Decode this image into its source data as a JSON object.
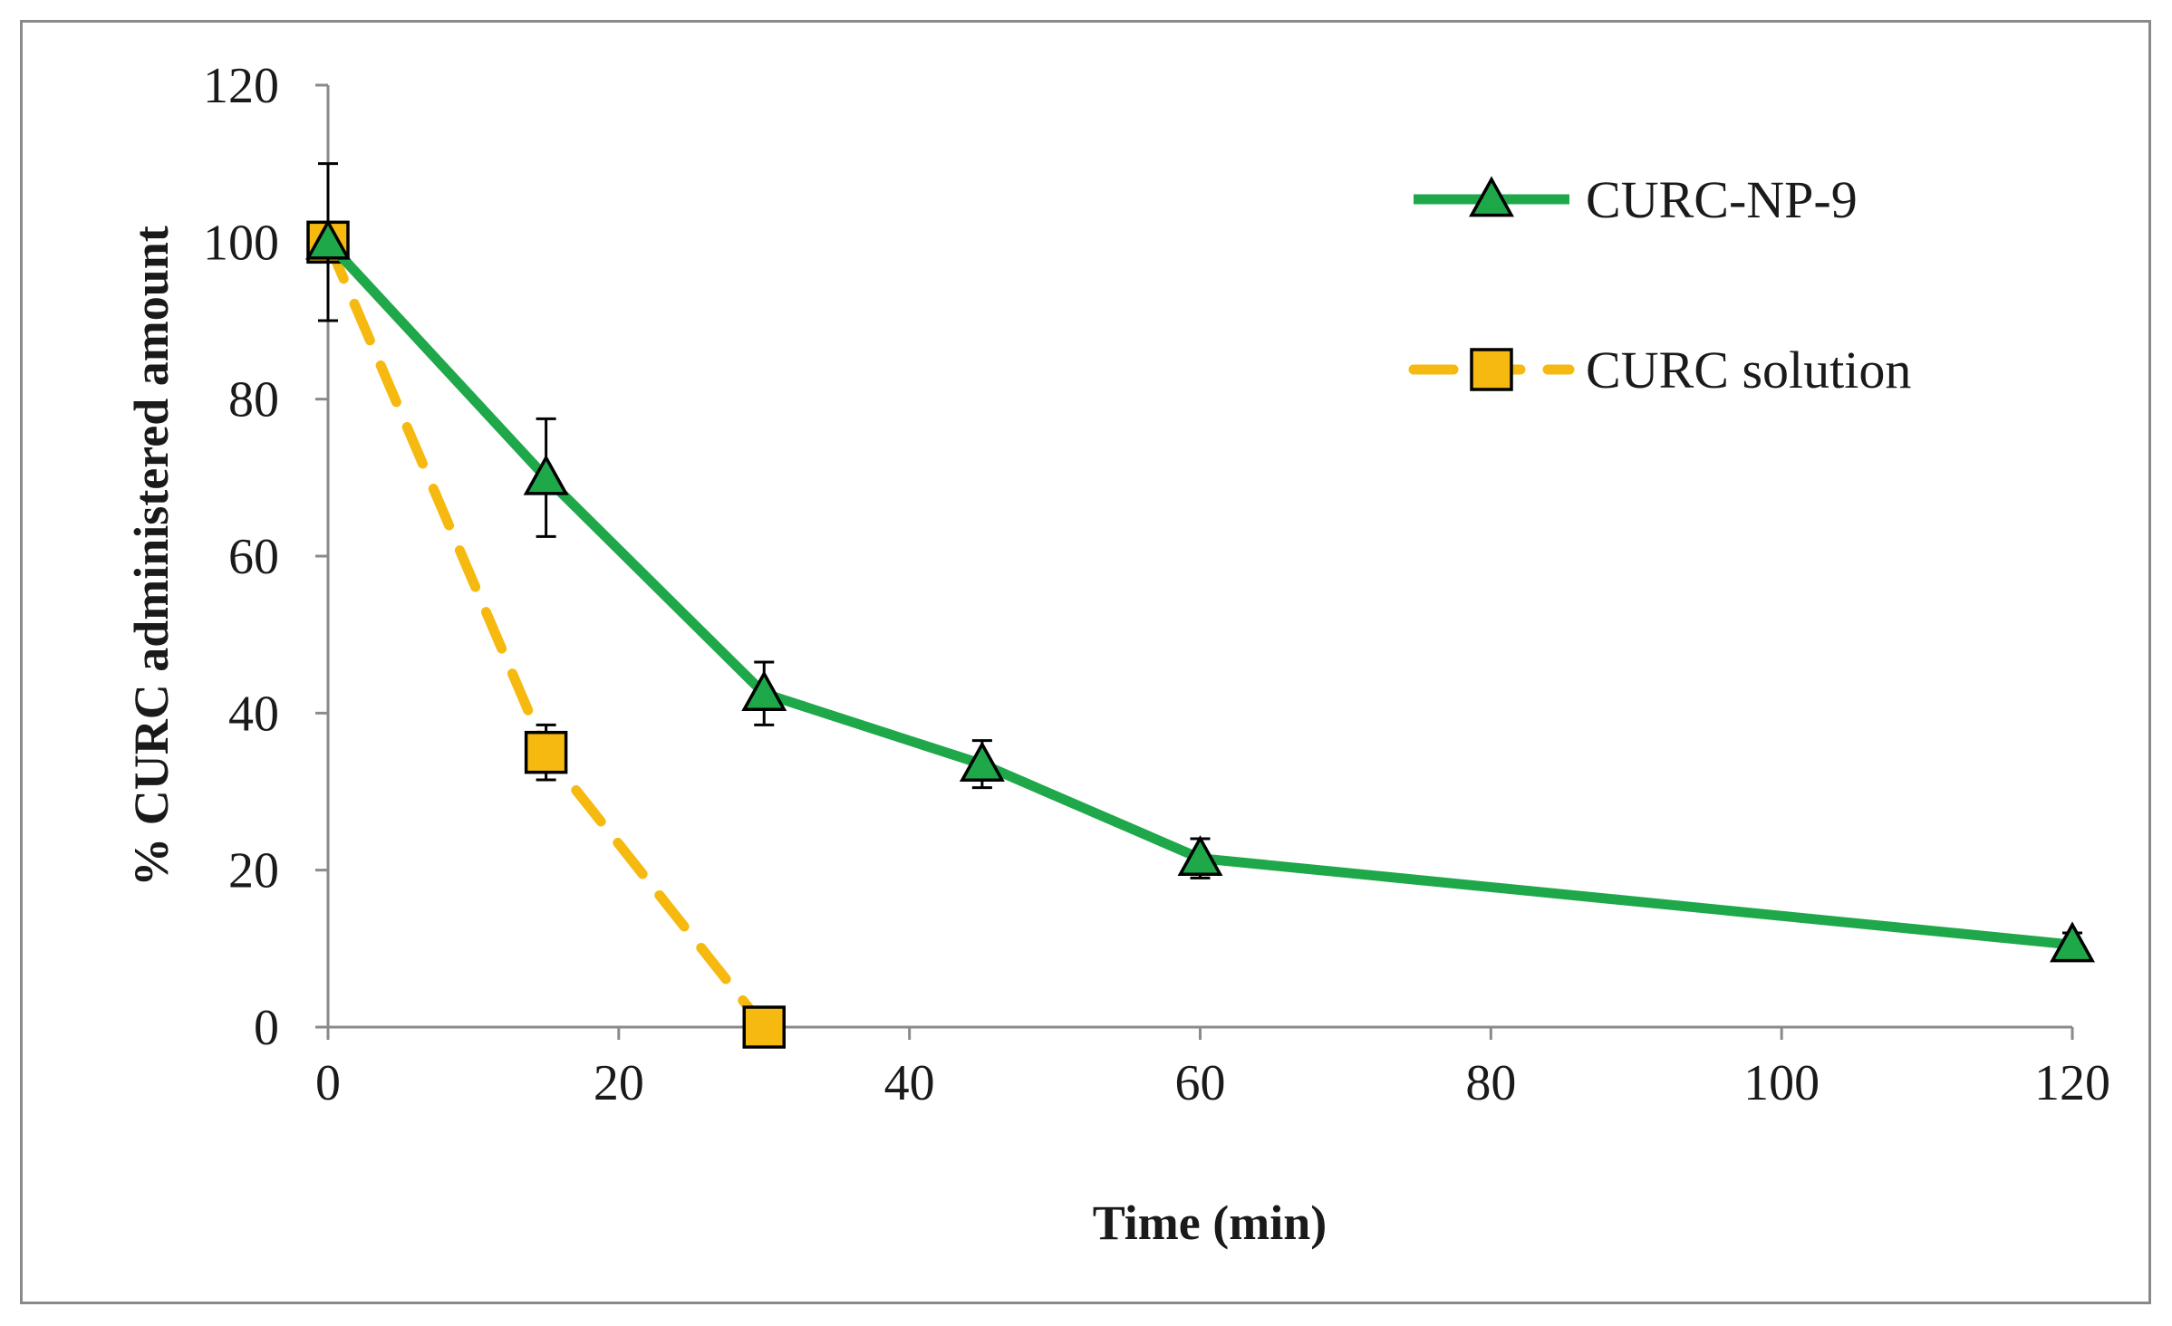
{
  "chart_data": {
    "type": "line",
    "title": "",
    "xlabel": "Time (min)",
    "ylabel": "% CURC administered amount",
    "xlim": [
      0,
      120
    ],
    "ylim": [
      0,
      120
    ],
    "xticks": [
      0,
      20,
      40,
      60,
      80,
      100,
      120
    ],
    "yticks": [
      0,
      20,
      40,
      60,
      80,
      100,
      120
    ],
    "grid": false,
    "legend_position": "top-right",
    "series": [
      {
        "name": "CURC-NP-9",
        "color": "#1fa84a",
        "marker": "triangle",
        "line_style": "solid",
        "x": [
          0,
          15,
          30,
          45,
          60,
          120
        ],
        "values": [
          100,
          70,
          42.5,
          33.5,
          21.5,
          10.5
        ],
        "error": [
          10,
          7.5,
          4,
          3,
          2.5,
          1.5
        ]
      },
      {
        "name": "CURC solution",
        "color": "#f6b90f",
        "marker": "square",
        "line_style": "dashed",
        "x": [
          0,
          15,
          30
        ],
        "values": [
          100,
          35,
          0
        ],
        "error": [
          0,
          3.5,
          0
        ]
      }
    ]
  }
}
